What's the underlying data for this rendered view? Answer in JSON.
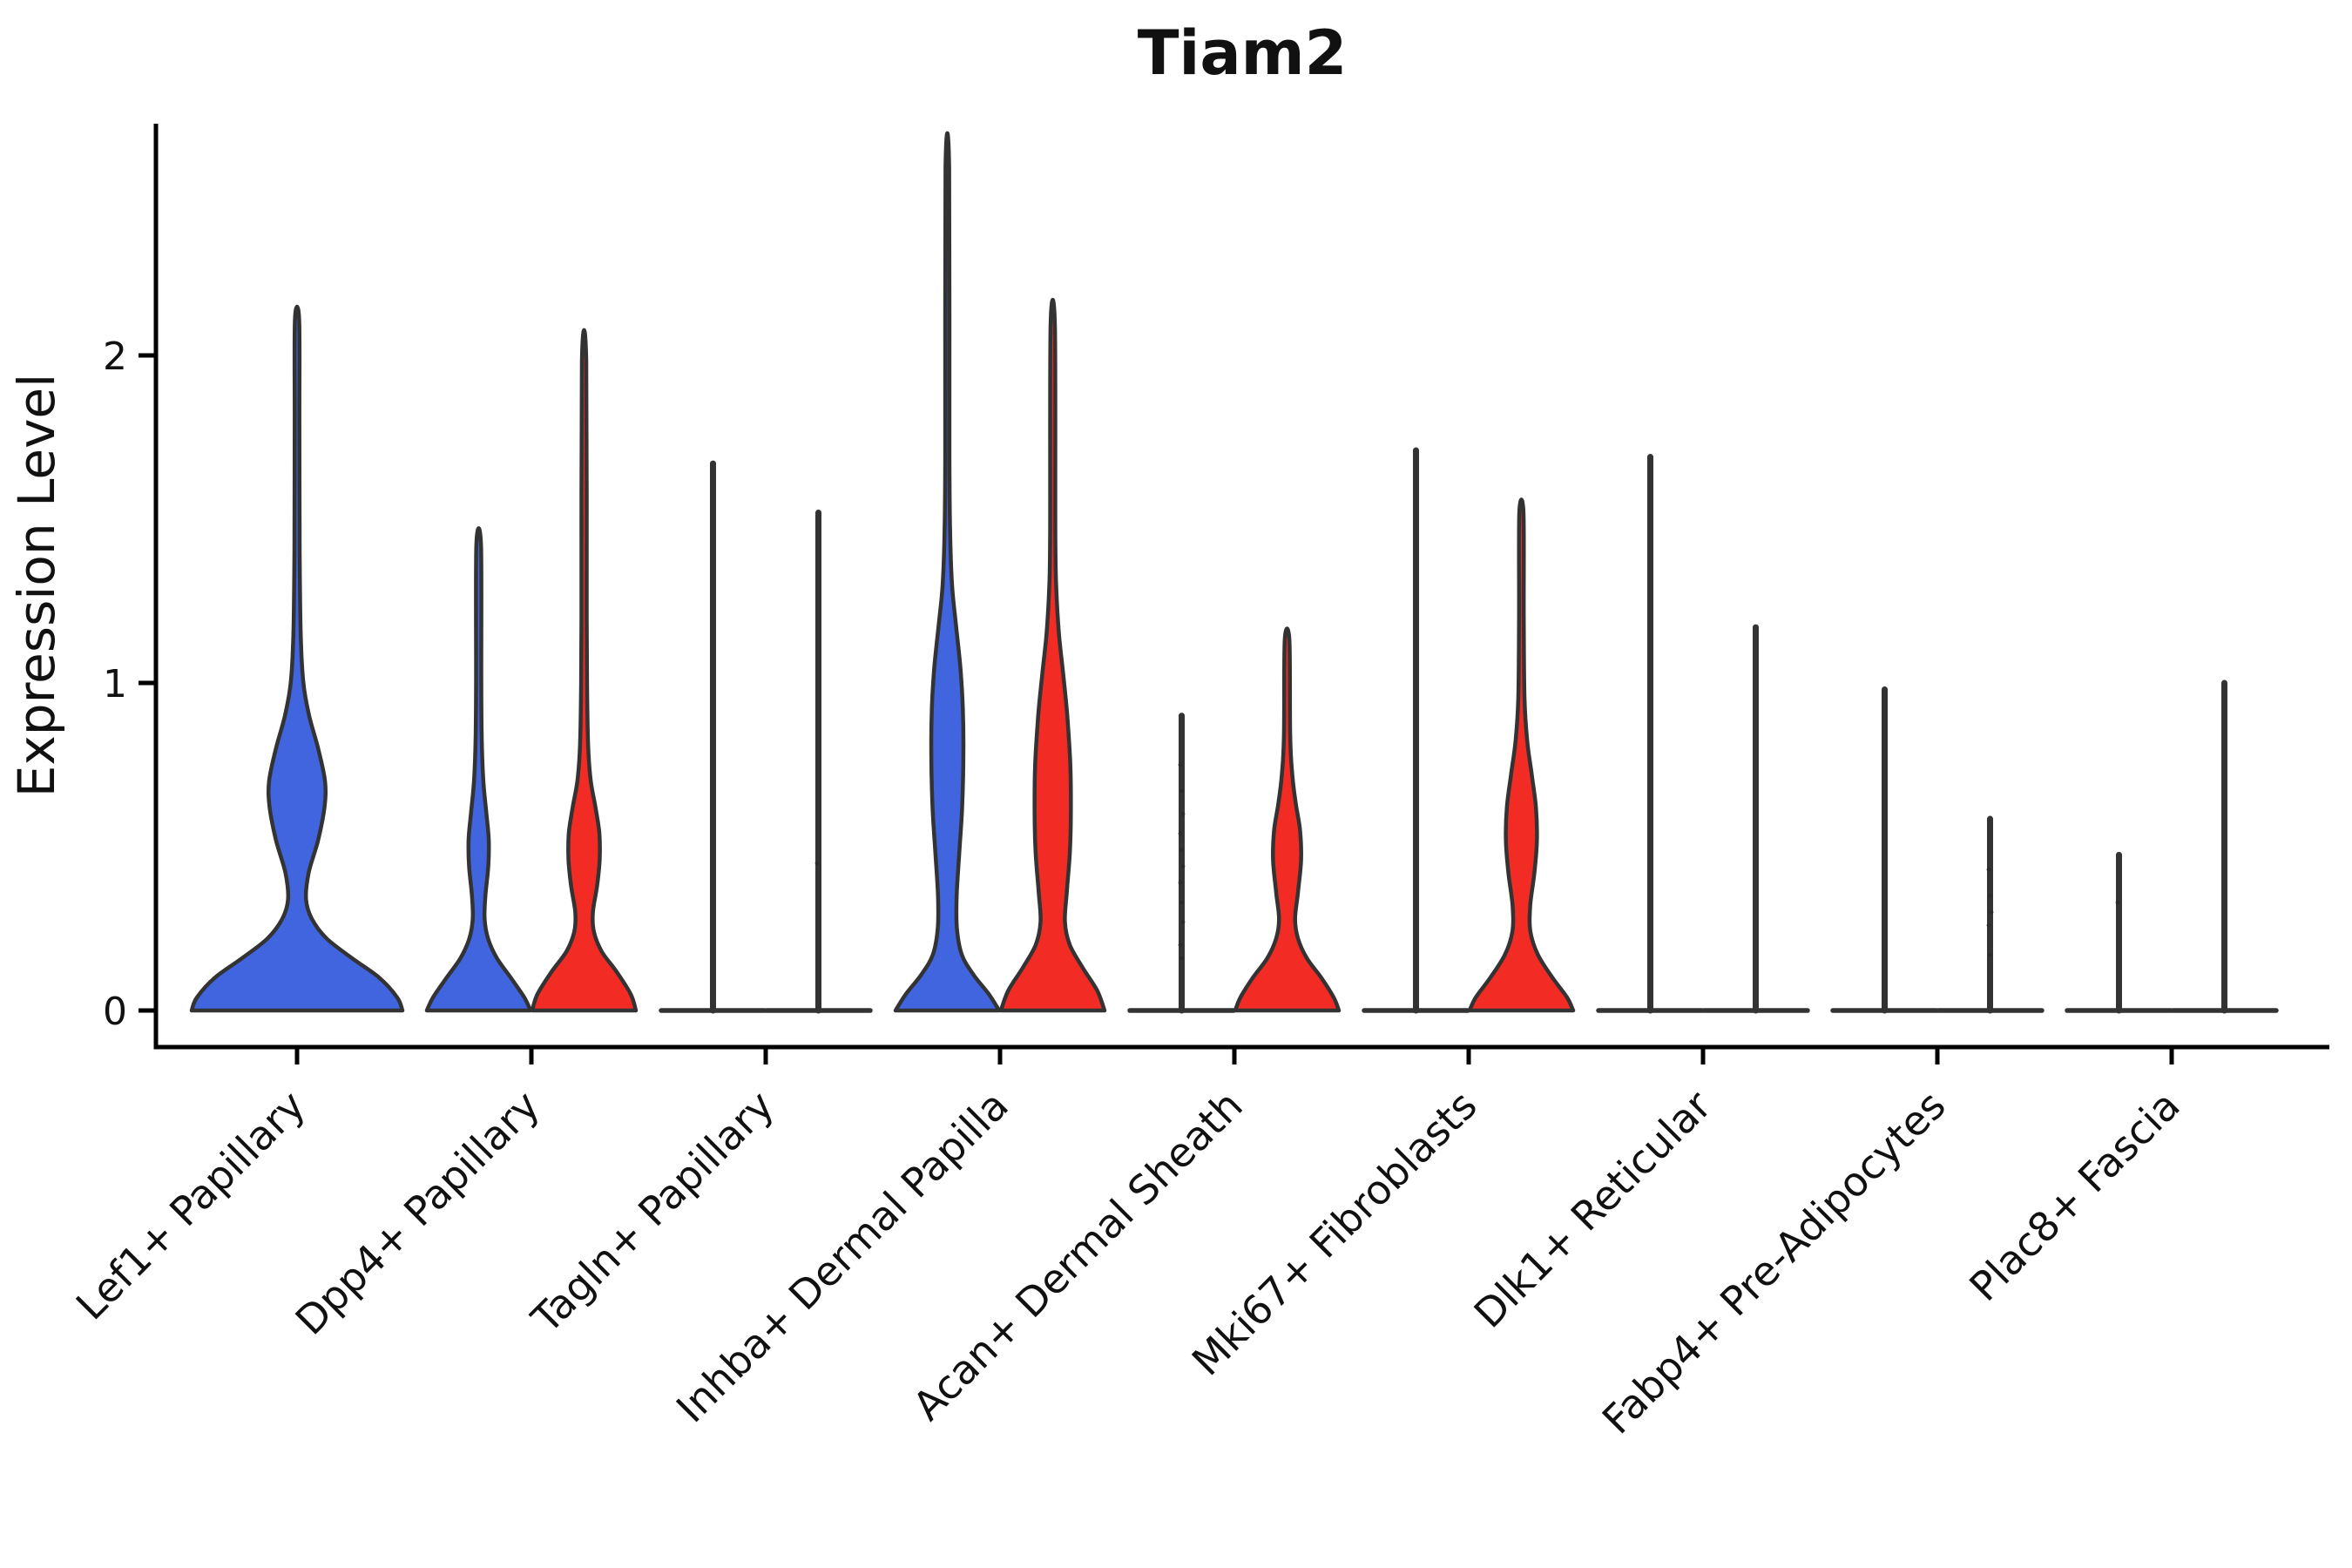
{
  "title": "Tiam2",
  "y_axis": {
    "label": "Expression Level"
  },
  "chart_data": {
    "type": "violin",
    "title": "Tiam2",
    "xlabel": "",
    "ylabel": "Expression Level",
    "ylim": [
      0,
      2.75
    ],
    "y_ticks": [
      0,
      1,
      2
    ],
    "y_tick_labels": [
      "0",
      "1",
      "2"
    ],
    "grid": false,
    "legend": "none",
    "palette": {
      "blue": "#4065DF",
      "red": "#F22C25",
      "outline": "#333333",
      "axis": "#000000",
      "point": "#2a2a2a"
    },
    "categories": [
      "Lef1+ Papillary",
      "Dpp4+ Papillary",
      "Tagln+ Papillary",
      "Inhba+ Dermal Papilla",
      "Acan+ Dermal Sheath",
      "Mki67+ Fibroblasts",
      "Dlk1+ Reticular",
      "Fabp4+ Pre-Adipocytes",
      "Plac8+ Fascia"
    ],
    "violins": [
      {
        "category": "Lef1+ Papillary",
        "cat": 0,
        "side": "full",
        "kind": "violin",
        "color": "blue",
        "max": 2.11,
        "profile": [
          [
            0,
            1.0
          ],
          [
            0.04,
            0.95
          ],
          [
            0.1,
            0.78
          ],
          [
            0.16,
            0.52
          ],
          [
            0.22,
            0.28
          ],
          [
            0.28,
            0.14
          ],
          [
            0.34,
            0.085
          ],
          [
            0.42,
            0.11
          ],
          [
            0.52,
            0.2
          ],
          [
            0.62,
            0.26
          ],
          [
            0.7,
            0.265
          ],
          [
            0.8,
            0.2
          ],
          [
            0.9,
            0.115
          ],
          [
            1.0,
            0.06
          ],
          [
            1.15,
            0.035
          ],
          [
            1.4,
            0.025
          ],
          [
            1.8,
            0.022
          ],
          [
            2.11,
            0.02
          ]
        ]
      },
      {
        "category": "Dpp4+ Papillary",
        "cat": 1,
        "side": "left",
        "kind": "violin",
        "color": "blue",
        "max": 1.42,
        "profile": [
          [
            0,
            1.0
          ],
          [
            0.04,
            0.88
          ],
          [
            0.1,
            0.62
          ],
          [
            0.16,
            0.35
          ],
          [
            0.22,
            0.18
          ],
          [
            0.28,
            0.115
          ],
          [
            0.35,
            0.13
          ],
          [
            0.44,
            0.185
          ],
          [
            0.52,
            0.195
          ],
          [
            0.6,
            0.15
          ],
          [
            0.7,
            0.09
          ],
          [
            0.82,
            0.06
          ],
          [
            1.0,
            0.05
          ],
          [
            1.42,
            0.045
          ]
        ]
      },
      {
        "category": "Dpp4+ Papillary",
        "cat": 1,
        "side": "right",
        "kind": "violin",
        "color": "red",
        "max": 1.98,
        "profile": [
          [
            0,
            1.0
          ],
          [
            0.05,
            0.9
          ],
          [
            0.12,
            0.62
          ],
          [
            0.18,
            0.34
          ],
          [
            0.24,
            0.19
          ],
          [
            0.3,
            0.17
          ],
          [
            0.38,
            0.25
          ],
          [
            0.46,
            0.3
          ],
          [
            0.54,
            0.295
          ],
          [
            0.62,
            0.22
          ],
          [
            0.7,
            0.13
          ],
          [
            0.8,
            0.08
          ],
          [
            0.95,
            0.06
          ],
          [
            1.2,
            0.05
          ],
          [
            1.98,
            0.042
          ]
        ]
      },
      {
        "category": "Tagln+ Papillary",
        "cat": 2,
        "side": "left",
        "kind": "spike",
        "max": 1.67,
        "dots": []
      },
      {
        "category": "Tagln+ Papillary",
        "cat": 2,
        "side": "right",
        "kind": "spike",
        "max": 1.52,
        "dots": [
          0.45
        ]
      },
      {
        "category": "Inhba+ Dermal Papilla",
        "cat": 3,
        "side": "left",
        "kind": "violin",
        "color": "blue",
        "max": 2.57,
        "profile": [
          [
            0,
            1.0
          ],
          [
            0.05,
            0.8
          ],
          [
            0.11,
            0.5
          ],
          [
            0.17,
            0.28
          ],
          [
            0.25,
            0.185
          ],
          [
            0.35,
            0.18
          ],
          [
            0.48,
            0.23
          ],
          [
            0.62,
            0.285
          ],
          [
            0.78,
            0.31
          ],
          [
            0.92,
            0.3
          ],
          [
            1.05,
            0.25
          ],
          [
            1.18,
            0.165
          ],
          [
            1.3,
            0.09
          ],
          [
            1.45,
            0.055
          ],
          [
            1.7,
            0.04
          ],
          [
            2.57,
            0.035
          ]
        ]
      },
      {
        "category": "Inhba+ Dermal Papilla",
        "cat": 3,
        "side": "right",
        "kind": "violin",
        "color": "red",
        "max": 2.09,
        "profile": [
          [
            0,
            1.0
          ],
          [
            0.06,
            0.86
          ],
          [
            0.13,
            0.58
          ],
          [
            0.2,
            0.33
          ],
          [
            0.27,
            0.235
          ],
          [
            0.36,
            0.27
          ],
          [
            0.48,
            0.33
          ],
          [
            0.6,
            0.35
          ],
          [
            0.75,
            0.34
          ],
          [
            0.9,
            0.28
          ],
          [
            1.03,
            0.2
          ],
          [
            1.15,
            0.12
          ],
          [
            1.28,
            0.07
          ],
          [
            1.45,
            0.05
          ],
          [
            2.09,
            0.042
          ]
        ]
      },
      {
        "category": "Acan+ Dermal Sheath",
        "cat": 4,
        "side": "left",
        "kind": "spike",
        "max": 0.9,
        "dots": [
          0.75,
          0.67,
          0.6,
          0.54,
          0.49,
          0.44,
          0.39,
          0.33,
          0.27,
          0.2,
          0.16
        ]
      },
      {
        "category": "Acan+ Dermal Sheath",
        "cat": 4,
        "side": "right",
        "kind": "violin",
        "color": "red",
        "max": 1.13,
        "profile": [
          [
            0,
            1.0
          ],
          [
            0.04,
            0.9
          ],
          [
            0.1,
            0.66
          ],
          [
            0.16,
            0.38
          ],
          [
            0.22,
            0.21
          ],
          [
            0.28,
            0.155
          ],
          [
            0.36,
            0.21
          ],
          [
            0.46,
            0.27
          ],
          [
            0.55,
            0.25
          ],
          [
            0.63,
            0.17
          ],
          [
            0.72,
            0.1
          ],
          [
            0.84,
            0.06
          ],
          [
            1.13,
            0.045
          ]
        ]
      },
      {
        "category": "Mki67+ Fibroblasts",
        "cat": 5,
        "side": "left",
        "kind": "spike",
        "max": 1.71,
        "dots": []
      },
      {
        "category": "Mki67+ Fibroblasts",
        "cat": 5,
        "side": "right",
        "kind": "violin",
        "color": "red",
        "max": 1.52,
        "profile": [
          [
            0,
            1.0
          ],
          [
            0.04,
            0.88
          ],
          [
            0.1,
            0.6
          ],
          [
            0.17,
            0.32
          ],
          [
            0.24,
            0.175
          ],
          [
            0.32,
            0.17
          ],
          [
            0.42,
            0.25
          ],
          [
            0.52,
            0.3
          ],
          [
            0.62,
            0.28
          ],
          [
            0.72,
            0.2
          ],
          [
            0.82,
            0.115
          ],
          [
            0.95,
            0.06
          ],
          [
            1.2,
            0.045
          ],
          [
            1.52,
            0.04
          ]
        ]
      },
      {
        "category": "Dlk1+ Reticular",
        "cat": 6,
        "side": "left",
        "kind": "spike",
        "max": 1.69,
        "dots": []
      },
      {
        "category": "Dlk1+ Reticular",
        "cat": 6,
        "side": "right",
        "kind": "spike",
        "max": 1.17,
        "dots": []
      },
      {
        "category": "Fabp4+ Pre-Adipocytes",
        "cat": 7,
        "side": "left",
        "kind": "spike",
        "max": 0.98,
        "dots": []
      },
      {
        "category": "Fabp4+ Pre-Adipocytes",
        "cat": 7,
        "side": "right",
        "kind": "spike",
        "max": 0.585,
        "dots": [
          0.43,
          0.35,
          0.3,
          0.26,
          0.17
        ]
      },
      {
        "category": "Plac8+ Fascia",
        "cat": 8,
        "side": "left",
        "kind": "spike",
        "max": 0.475,
        "dots": [
          0.33
        ]
      },
      {
        "category": "Plac8+ Fascia",
        "cat": 8,
        "side": "right",
        "kind": "spike",
        "max": 1.0,
        "dots": []
      }
    ]
  }
}
